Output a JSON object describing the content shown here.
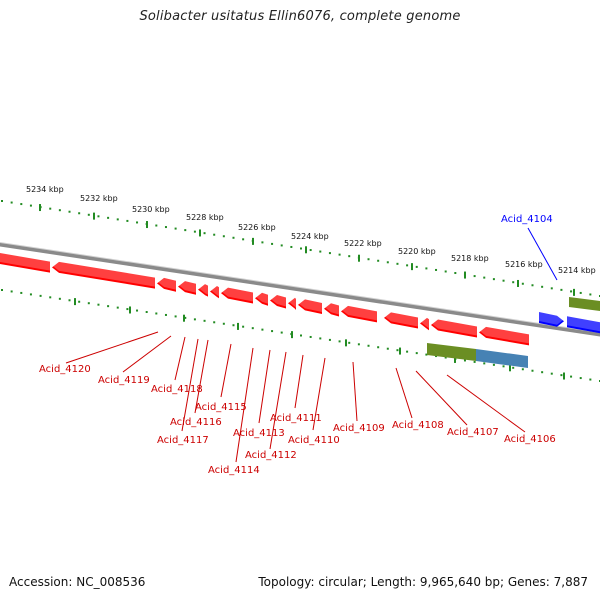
{
  "title": "Solibacter usitatus Ellin6076, complete genome",
  "footer": {
    "accession": "Accession: NC_008536",
    "summary": "Topology: circular; Length: 9,965,640 bp; Genes: 7,887"
  },
  "colors": {
    "minus_strand_gene": "#ff0000",
    "plus_strand_gene": "#0000ff",
    "green_feature": "#6b8e23",
    "blue_feature": "#4682b4",
    "scale_tick": "#228b22",
    "backbone": "#808080"
  },
  "scale": {
    "unit": "kbp",
    "labels": [
      "5234 kbp",
      "5232 kbp",
      "5230 kbp",
      "5228 kbp",
      "5226 kbp",
      "5224 kbp",
      "5222 kbp",
      "5220 kbp",
      "5218 kbp",
      "5216 kbp",
      "5214 kbp"
    ]
  },
  "genes": [
    {
      "id": "Acid_4104",
      "strand": "plus"
    },
    {
      "id": "Acid_4106",
      "strand": "minus"
    },
    {
      "id": "Acid_4107",
      "strand": "minus"
    },
    {
      "id": "Acid_4108",
      "strand": "minus"
    },
    {
      "id": "Acid_4109",
      "strand": "minus"
    },
    {
      "id": "Acid_4110",
      "strand": "minus"
    },
    {
      "id": "Acid_4111",
      "strand": "minus"
    },
    {
      "id": "Acid_4112",
      "strand": "minus"
    },
    {
      "id": "Acid_4113",
      "strand": "minus"
    },
    {
      "id": "Acid_4114",
      "strand": "minus"
    },
    {
      "id": "Acid_4115",
      "strand": "minus"
    },
    {
      "id": "Acid_4116",
      "strand": "minus"
    },
    {
      "id": "Acid_4117",
      "strand": "minus"
    },
    {
      "id": "Acid_4118",
      "strand": "minus"
    },
    {
      "id": "Acid_4119",
      "strand": "minus"
    },
    {
      "id": "Acid_4120",
      "strand": "minus"
    }
  ]
}
